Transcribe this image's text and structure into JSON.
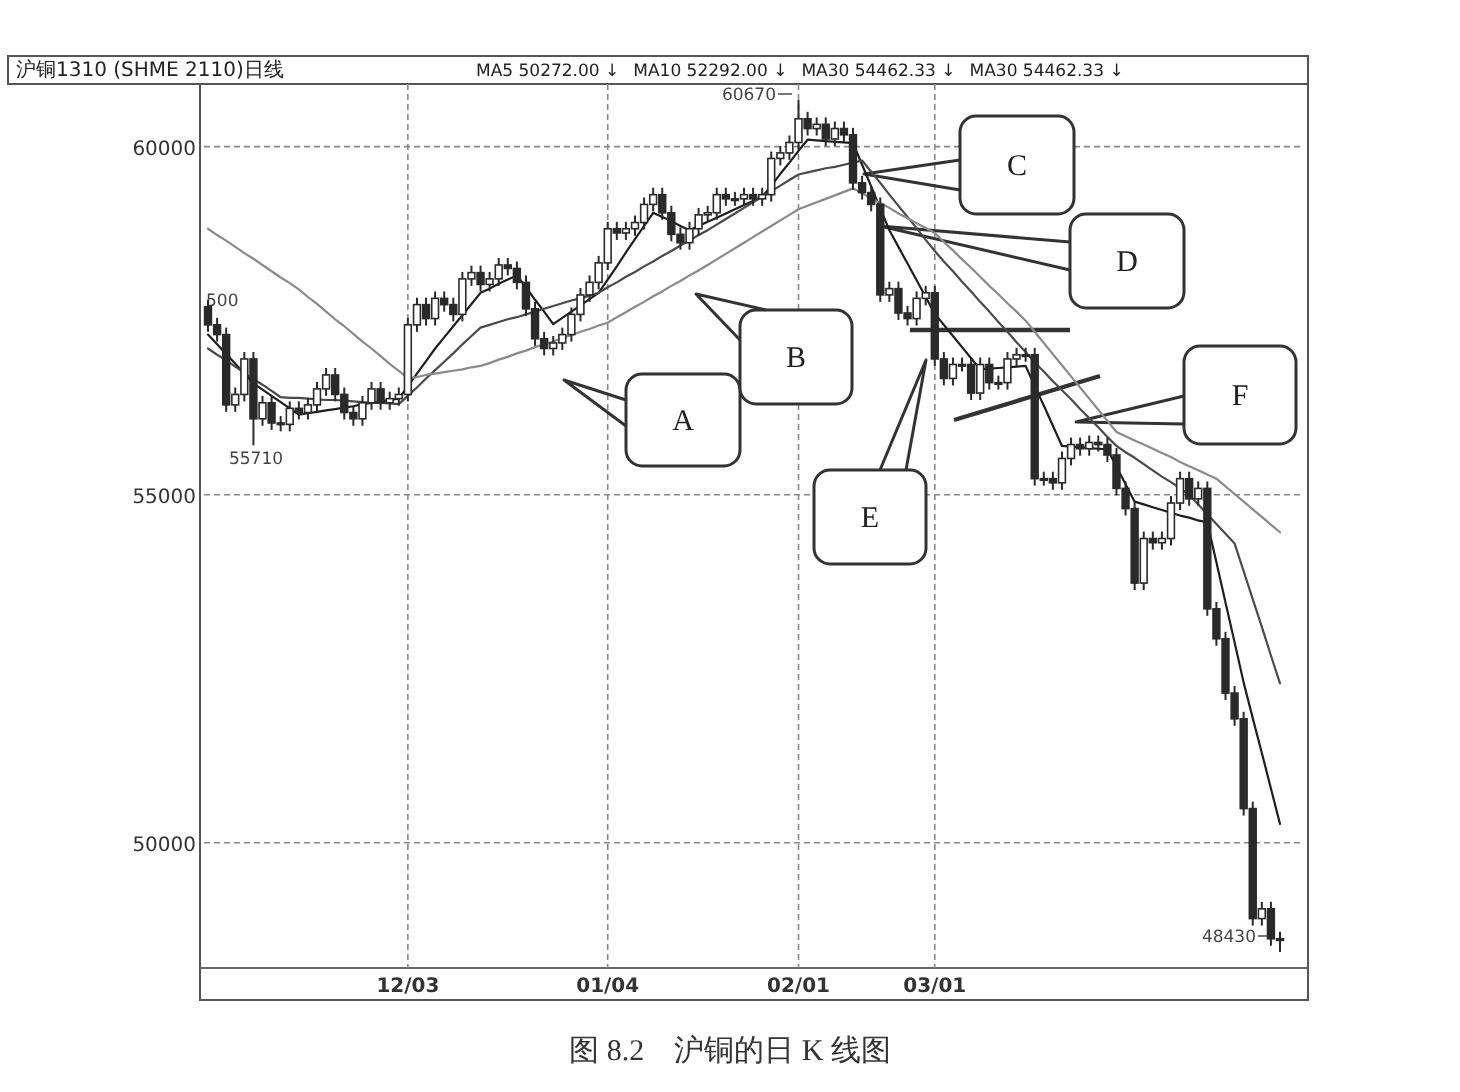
{
  "chart_data": {
    "type": "candlestick",
    "title": "沪铜1310 (SHME 2110)日线",
    "categories": [
      null,
      null,
      null,
      null,
      null,
      null,
      null,
      null,
      null,
      null,
      null,
      null,
      null,
      null,
      null,
      null,
      null,
      null,
      null,
      null,
      null,
      null,
      "12/03",
      null,
      null,
      null,
      null,
      null,
      null,
      null,
      null,
      null,
      null,
      null,
      null,
      null,
      null,
      null,
      null,
      null,
      null,
      null,
      null,
      null,
      "01/04",
      null,
      null,
      null,
      null,
      null,
      null,
      null,
      null,
      null,
      null,
      null,
      null,
      null,
      null,
      null,
      null,
      null,
      null,
      null,
      null,
      "02/01",
      null,
      null,
      null,
      null,
      null,
      null,
      null,
      null,
      null,
      null,
      null,
      null,
      null,
      null,
      "03/01",
      null,
      null,
      null,
      null,
      null,
      null,
      null,
      null,
      null,
      null,
      null,
      null,
      null,
      null,
      null,
      null,
      null,
      null,
      null,
      null,
      null,
      null,
      null,
      null,
      null,
      null,
      null,
      null,
      null,
      null,
      null,
      null,
      null,
      null,
      null,
      null,
      null,
      null
    ],
    "color": "#2a2a2a",
    "ohlc": [
      [
        57700,
        57800,
        57340,
        57440
      ],
      [
        57440,
        57540,
        57200,
        57300
      ],
      [
        57300,
        57400,
        56190,
        56290
      ],
      [
        56290,
        56540,
        56190,
        56440
      ],
      [
        56440,
        57050,
        56340,
        56950
      ],
      [
        56950,
        57050,
        55710,
        56090
      ],
      [
        56090,
        56420,
        55990,
        56320
      ],
      [
        56320,
        56420,
        55930,
        56030
      ],
      [
        56030,
        56130,
        55910,
        56010
      ],
      [
        56010,
        56340,
        55910,
        56240
      ],
      [
        56240,
        56340,
        56080,
        56180
      ],
      [
        56180,
        56390,
        56080,
        56290
      ],
      [
        56290,
        56620,
        56190,
        56520
      ],
      [
        56520,
        56820,
        56420,
        56720
      ],
      [
        56720,
        56820,
        56340,
        56440
      ],
      [
        56440,
        56540,
        56080,
        56180
      ],
      [
        56180,
        56280,
        55990,
        56090
      ],
      [
        56090,
        56420,
        55990,
        56320
      ],
      [
        56320,
        56620,
        56220,
        56520
      ],
      [
        56520,
        56620,
        56220,
        56320
      ],
      [
        56320,
        56480,
        56220,
        56380
      ],
      [
        56380,
        56540,
        56280,
        56440
      ],
      [
        56440,
        57540,
        56340,
        57440
      ],
      [
        57440,
        57830,
        57340,
        57730
      ],
      [
        57730,
        57830,
        57430,
        57530
      ],
      [
        57530,
        57920,
        57430,
        57820
      ],
      [
        57820,
        57920,
        57630,
        57730
      ],
      [
        57730,
        57830,
        57490,
        57590
      ],
      [
        57590,
        58200,
        57490,
        58100
      ],
      [
        58100,
        58290,
        58000,
        58190
      ],
      [
        58190,
        58290,
        57920,
        58020
      ],
      [
        58020,
        58200,
        57920,
        58100
      ],
      [
        58100,
        58400,
        58000,
        58300
      ],
      [
        58300,
        58400,
        58150,
        58250
      ],
      [
        58250,
        58350,
        57950,
        58050
      ],
      [
        58050,
        58150,
        57570,
        57670
      ],
      [
        57670,
        57770,
        57140,
        57240
      ],
      [
        57240,
        57340,
        57000,
        57100
      ],
      [
        57100,
        57280,
        57000,
        57180
      ],
      [
        57180,
        57400,
        57080,
        57300
      ],
      [
        57300,
        57690,
        57200,
        57590
      ],
      [
        57590,
        57970,
        57490,
        57870
      ],
      [
        57870,
        58150,
        57770,
        58050
      ],
      [
        58050,
        58430,
        57950,
        58330
      ],
      [
        58330,
        58920,
        58230,
        58820
      ],
      [
        58820,
        58920,
        58660,
        58760
      ],
      [
        58760,
        58920,
        58660,
        58820
      ],
      [
        58820,
        59010,
        58720,
        58910
      ],
      [
        58910,
        59270,
        58810,
        59170
      ],
      [
        59170,
        59410,
        59070,
        59310
      ],
      [
        59310,
        59410,
        58950,
        59050
      ],
      [
        59050,
        59150,
        58640,
        58740
      ],
      [
        58740,
        58840,
        58520,
        58620
      ],
      [
        58620,
        58920,
        58520,
        58820
      ],
      [
        58820,
        59120,
        58720,
        59020
      ],
      [
        59020,
        59150,
        58920,
        59050
      ],
      [
        59050,
        59410,
        58950,
        59310
      ],
      [
        59310,
        59410,
        59150,
        59250
      ],
      [
        59250,
        59350,
        59150,
        59250
      ],
      [
        59250,
        59410,
        59150,
        59310
      ],
      [
        59310,
        59410,
        59150,
        59250
      ],
      [
        59250,
        59410,
        59150,
        59310
      ],
      [
        59310,
        59930,
        59210,
        59830
      ],
      [
        59830,
        60010,
        59730,
        59910
      ],
      [
        59910,
        60160,
        59810,
        60060
      ],
      [
        60060,
        60670,
        59960,
        60400
      ],
      [
        60400,
        60500,
        60160,
        60260
      ],
      [
        60260,
        60420,
        60160,
        60320
      ],
      [
        60320,
        60420,
        60010,
        60110
      ],
      [
        60110,
        60360,
        60010,
        60260
      ],
      [
        60260,
        60360,
        60070,
        60170
      ],
      [
        60170,
        60270,
        59380,
        59480
      ],
      [
        59480,
        59580,
        59240,
        59340
      ],
      [
        59340,
        59440,
        59070,
        59170
      ],
      [
        59170,
        59270,
        57770,
        57870
      ],
      [
        57870,
        58060,
        57770,
        57960
      ],
      [
        57960,
        58060,
        57510,
        57610
      ],
      [
        57610,
        57710,
        57430,
        57530
      ],
      [
        57530,
        57920,
        57430,
        57820
      ],
      [
        57820,
        58000,
        57720,
        57900
      ],
      [
        57900,
        58000,
        56850,
        56950
      ],
      [
        56950,
        57050,
        56570,
        56670
      ],
      [
        56670,
        56970,
        56570,
        56870
      ],
      [
        56870,
        56970,
        56770,
        56870
      ],
      [
        56870,
        56970,
        56360,
        56460
      ],
      [
        56460,
        56970,
        56360,
        56870
      ],
      [
        56870,
        56970,
        56510,
        56610
      ],
      [
        56610,
        56710,
        56510,
        56610
      ],
      [
        56610,
        57050,
        56510,
        56950
      ],
      [
        56950,
        57110,
        56850,
        57010
      ],
      [
        57010,
        57110,
        56910,
        57010
      ],
      [
        57010,
        57110,
        55130,
        55230
      ],
      [
        55230,
        55330,
        55130,
        55230
      ],
      [
        55230,
        55330,
        55070,
        55170
      ],
      [
        55170,
        55620,
        55070,
        55520
      ],
      [
        55520,
        55820,
        55420,
        55720
      ],
      [
        55720,
        55820,
        55560,
        55660
      ],
      [
        55660,
        55850,
        55560,
        55750
      ],
      [
        55750,
        55850,
        55620,
        55720
      ],
      [
        55720,
        55820,
        55470,
        55570
      ],
      [
        55570,
        55670,
        54990,
        55090
      ],
      [
        55090,
        55190,
        54700,
        54800
      ],
      [
        54800,
        54900,
        53630,
        53730
      ],
      [
        53730,
        54470,
        53630,
        54370
      ],
      [
        54370,
        54470,
        54210,
        54310
      ],
      [
        54310,
        54470,
        54210,
        54370
      ],
      [
        54370,
        54980,
        54270,
        54880
      ],
      [
        54880,
        55330,
        54780,
        55230
      ],
      [
        55230,
        55330,
        54840,
        54940
      ],
      [
        54940,
        55190,
        54840,
        55090
      ],
      [
        55090,
        55190,
        53260,
        53360
      ],
      [
        53360,
        53460,
        52830,
        52930
      ],
      [
        52930,
        53030,
        52050,
        52150
      ],
      [
        52150,
        52250,
        51680,
        51780
      ],
      [
        51780,
        51880,
        50390,
        50490
      ],
      [
        50490,
        50590,
        48810,
        48910
      ],
      [
        48910,
        49150,
        48810,
        49050
      ],
      [
        49050,
        49150,
        48520,
        48620
      ],
      [
        48620,
        48720,
        48430,
        48600
      ]
    ],
    "series": [
      {
        "type": "line",
        "color": "#1e1e1e",
        "values": [
          57300,
          57160,
          57020,
          56880,
          56740,
          56600,
          56510,
          56420,
          56330,
          56240,
          56150,
          56170,
          56190,
          56210,
          56230,
          56250,
          56270,
          56300,
          56320,
          56340,
          56360,
          56380,
          56560,
          56740,
          56920,
          57100,
          57260,
          57420,
          57580,
          57740,
          57900,
          57960,
          58030,
          58090,
          58150,
          57980,
          57800,
          57630,
          57450,
          57540,
          57630,
          57720,
          57810,
          57900,
          58090,
          58280,
          58480,
          58670,
          58860,
          59050,
          58990,
          58930,
          58860,
          58800,
          58860,
          58920,
          58980,
          59040,
          59100,
          59160,
          59220,
          59280,
          59440,
          59610,
          59770,
          59940,
          60100,
          60090,
          60080,
          60070,
          60060,
          60050,
          59740,
          59430,
          59110,
          58800,
          58560,
          58320,
          58080,
          57840,
          57600,
          57440,
          57280,
          57120,
          56960,
          56800,
          56810,
          56820,
          56830,
          56840,
          56850,
          56560,
          56280,
          55990,
          55700,
          55690,
          55680,
          55670,
          55660,
          55650,
          55400,
          55150,
          54900,
          54860,
          54820,
          54780,
          54740,
          54700,
          54670,
          54630,
          54600,
          54030,
          53450,
          52880,
          52300,
          51790,
          51290,
          50780,
          50270
        ]
      },
      {
        "type": "line",
        "color": "#4a4a4a",
        "values": [
          57100,
          57010,
          56930,
          56840,
          56750,
          56660,
          56580,
          56490,
          56400,
          56390,
          56390,
          56380,
          56370,
          56360,
          56360,
          56350,
          56340,
          56330,
          56320,
          56320,
          56310,
          56300,
          56420,
          56540,
          56670,
          56790,
          56910,
          57030,
          57160,
          57280,
          57400,
          57440,
          57480,
          57520,
          57550,
          57590,
          57630,
          57670,
          57710,
          57750,
          57790,
          57820,
          57860,
          57900,
          57980,
          58050,
          58130,
          58200,
          58280,
          58350,
          58430,
          58500,
          58580,
          58650,
          58730,
          58800,
          58880,
          58960,
          59040,
          59120,
          59200,
          59280,
          59360,
          59440,
          59520,
          59600,
          59630,
          59660,
          59690,
          59710,
          59740,
          59770,
          59800,
          59640,
          59480,
          59310,
          59150,
          58990,
          58830,
          58660,
          58500,
          58350,
          58210,
          58060,
          57920,
          57770,
          57630,
          57480,
          57340,
          57190,
          57050,
          56900,
          56770,
          56630,
          56500,
          56370,
          56230,
          56100,
          55970,
          55830,
          55700,
          55610,
          55530,
          55440,
          55350,
          55260,
          55180,
          55090,
          55000,
          54860,
          54720,
          54580,
          54440,
          54300,
          53900,
          53500,
          53100,
          52690,
          52290
        ]
      },
      {
        "type": "line",
        "color": "#8a8a8a",
        "values": [
          58820,
          58730,
          58650,
          58560,
          58470,
          58390,
          58300,
          58210,
          58120,
          58040,
          57950,
          57840,
          57740,
          57630,
          57520,
          57420,
          57310,
          57200,
          57100,
          56990,
          56880,
          56780,
          56670,
          56690,
          56720,
          56740,
          56760,
          56780,
          56800,
          56830,
          56850,
          56890,
          56940,
          56980,
          57030,
          57070,
          57120,
          57160,
          57200,
          57250,
          57290,
          57340,
          57380,
          57430,
          57470,
          57550,
          57620,
          57700,
          57770,
          57850,
          57920,
          58000,
          58070,
          58150,
          58220,
          58300,
          58380,
          58460,
          58540,
          58620,
          58700,
          58780,
          58860,
          58940,
          59020,
          59100,
          59150,
          59200,
          59250,
          59300,
          59350,
          59400,
          59330,
          59260,
          59190,
          59120,
          59040,
          58970,
          58900,
          58830,
          58760,
          58630,
          58510,
          58380,
          58260,
          58130,
          58000,
          57880,
          57750,
          57630,
          57500,
          57340,
          57180,
          57020,
          56860,
          56700,
          56540,
          56380,
          56220,
          56060,
          55900,
          55840,
          55780,
          55720,
          55660,
          55600,
          55540,
          55470,
          55410,
          55350,
          55290,
          55230,
          55120,
          55010,
          54900,
          54790,
          54680,
          54570,
          54460
        ]
      }
    ],
    "ylim": [
      48200,
      60900
    ],
    "yticks": [
      50000,
      55000,
      60000
    ],
    "grid": true,
    "annotations": [
      "MA5 50272.00 ↓",
      "MA10 52292.00 ↓",
      "MA30 54462.33 ↓",
      "MA30 54462.33 ↓",
      "500",
      "A",
      "B",
      "C",
      "D",
      "E",
      "F",
      "图 8.2　沪铜的日 K 线图",
      "60670",
      "55710",
      "48430"
    ]
  }
}
